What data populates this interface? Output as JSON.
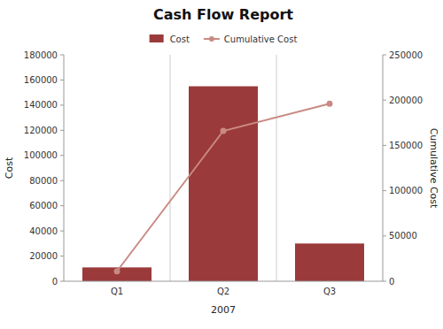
{
  "chart_data": {
    "type": "bar",
    "title": "Cash Flow Report",
    "categories": [
      "Q1",
      "Q2",
      "Q3"
    ],
    "xlabel": "2007",
    "ylabel": "Cost",
    "y2label": "Cumulative Cost",
    "series": [
      {
        "name": "Cost",
        "type": "bar",
        "color": "#9B3A3A",
        "values": [
          11000,
          155000,
          30000
        ]
      },
      {
        "name": "Cumulative Cost",
        "type": "line",
        "axis": "y2",
        "color": "#C98A84",
        "marker": "circle",
        "values": [
          11000,
          166000,
          196000
        ]
      }
    ],
    "ylim": [
      0,
      180000
    ],
    "yticks": [
      0,
      20000,
      40000,
      60000,
      80000,
      100000,
      120000,
      140000,
      160000,
      180000
    ],
    "y2lim": [
      0,
      250000
    ],
    "y2ticks": [
      0,
      50000,
      100000,
      150000,
      200000,
      250000
    ],
    "grid": false,
    "legend": "top"
  }
}
